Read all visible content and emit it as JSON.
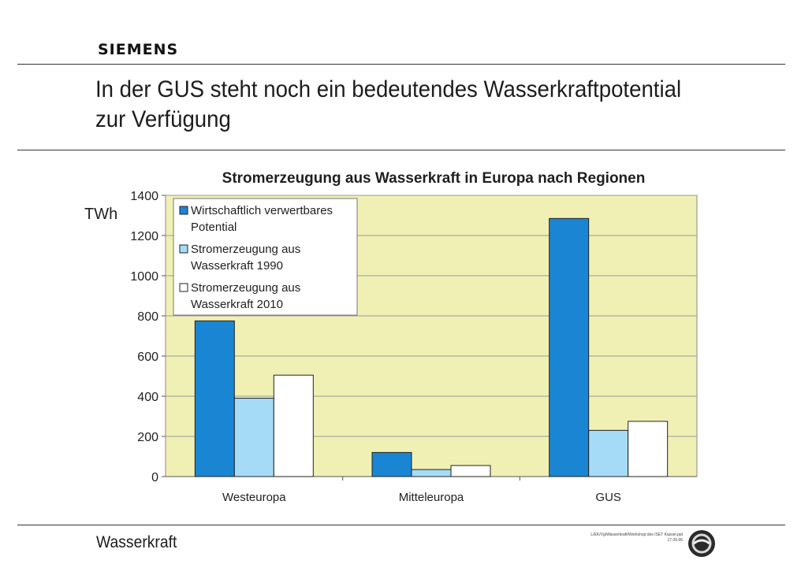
{
  "header": {
    "logo": "SIEMENS",
    "title_line1": "In der GUS steht noch ein bedeutendes Wasserkraftpotential",
    "title_line2": "zur Verfügung"
  },
  "footer": {
    "label": "Wasserkraft",
    "path": "L/EK/Vg/Wasserkraft/Workshop des ISET Kassel.ppt",
    "date": "17.09.96"
  },
  "colors": {
    "plot_background": "#f1f0b4",
    "series_potential": "#1a86d3",
    "series_1990": "#a6dbf7",
    "series_2010": "#ffffff"
  },
  "chart_data": {
    "type": "bar",
    "title": "Stromerzeugung aus Wasserkraft in Europa nach Regionen",
    "ylabel": "TWh",
    "xlabel": "",
    "ylim": [
      0,
      1400
    ],
    "yticks": [
      0,
      200,
      400,
      600,
      800,
      1000,
      1200,
      1400
    ],
    "grid": true,
    "legend_position": "top-left",
    "categories": [
      "Westeuropa",
      "Mitteleuropa",
      "GUS"
    ],
    "series": [
      {
        "name": "Wirtschaftlich verwertbares Potential",
        "values": [
          775,
          120,
          1285
        ]
      },
      {
        "name": "Stromerzeugung aus Wasserkraft 1990",
        "values": [
          390,
          35,
          230
        ]
      },
      {
        "name": "Stromerzeugung aus Wasserkraft 2010",
        "values": [
          505,
          55,
          275
        ]
      }
    ]
  }
}
